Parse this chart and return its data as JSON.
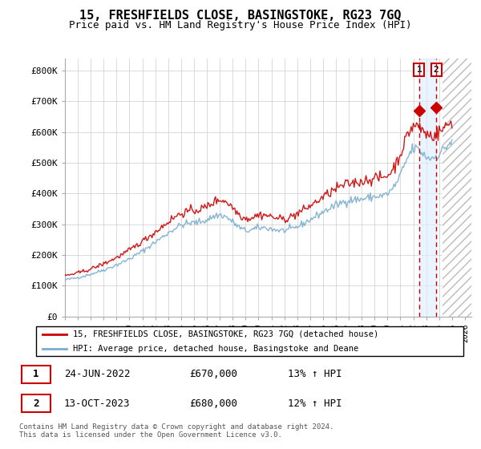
{
  "title": "15, FRESHFIELDS CLOSE, BASINGSTOKE, RG23 7GQ",
  "subtitle": "Price paid vs. HM Land Registry's House Price Index (HPI)",
  "ylabel_ticks": [
    "£0",
    "£100K",
    "£200K",
    "£300K",
    "£400K",
    "£500K",
    "£600K",
    "£700K",
    "£800K"
  ],
  "ytick_values": [
    0,
    100000,
    200000,
    300000,
    400000,
    500000,
    600000,
    700000,
    800000
  ],
  "ylim": [
    0,
    840000
  ],
  "xlim_start": 1995.0,
  "xlim_end": 2026.5,
  "legend_label_red": "15, FRESHFIELDS CLOSE, BASINGSTOKE, RG23 7GQ (detached house)",
  "legend_label_blue": "HPI: Average price, detached house, Basingstoke and Deane",
  "transaction1_date": "24-JUN-2022",
  "transaction1_price": "£670,000",
  "transaction1_hpi": "13% ↑ HPI",
  "transaction1_x": 2022.46,
  "transaction1_y": 670000,
  "transaction2_date": "13-OCT-2023",
  "transaction2_price": "£680,000",
  "transaction2_hpi": "12% ↑ HPI",
  "transaction2_x": 2023.78,
  "transaction2_y": 680000,
  "red_color": "#cc0000",
  "blue_color": "#7aadcf",
  "shade_color": "#ddeeff",
  "hatch_color": "#aaaaaa",
  "future_x": 2024.25,
  "footer": "Contains HM Land Registry data © Crown copyright and database right 2024.\nThis data is licensed under the Open Government Licence v3.0."
}
